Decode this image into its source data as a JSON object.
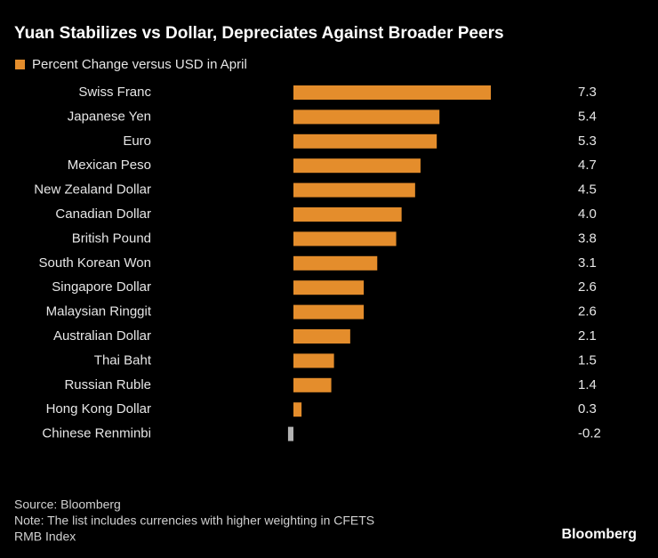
{
  "chart_data": {
    "type": "bar",
    "orientation": "horizontal",
    "title": "Yuan Stabilizes vs Dollar, Depreciates Against Broader Peers",
    "categories": [
      "Swiss Franc",
      "Japanese Yen",
      "Euro",
      "Mexican Peso",
      "New Zealand Dollar",
      "Canadian Dollar",
      "British Pound",
      "South Korean Won",
      "Singapore Dollar",
      "Malaysian Ringgit",
      "Australian Dollar",
      "Thai Baht",
      "Russian Ruble",
      "Hong Kong Dollar",
      "Chinese Renminbi"
    ],
    "series": [
      {
        "name": "Percent Change versus USD in April",
        "color": "#e48d2c",
        "values": [
          7.3,
          5.4,
          5.3,
          4.7,
          4.5,
          4.0,
          3.8,
          3.1,
          2.6,
          2.6,
          2.1,
          1.5,
          1.4,
          0.3,
          -0.2
        ],
        "value_labels": [
          "7.3",
          "5.4",
          "5.3",
          "4.7",
          "4.5",
          "4.0",
          "3.8",
          "3.1",
          "2.6",
          "2.6",
          "2.1",
          "1.5",
          "1.4",
          "0.3",
          "-0.2"
        ],
        "colors": [
          "#e48d2c",
          "#e48d2c",
          "#e48d2c",
          "#e48d2c",
          "#e48d2c",
          "#e48d2c",
          "#e48d2c",
          "#e48d2c",
          "#e48d2c",
          "#e48d2c",
          "#e48d2c",
          "#e48d2c",
          "#e48d2c",
          "#e48d2c",
          "#b3b3b3"
        ]
      }
    ],
    "source": "Source: Bloomberg",
    "note": [
      "Note: The list includes currencies with higher weighting in CFETS",
      "RMB Index"
    ],
    "brand": "Bloomberg"
  }
}
